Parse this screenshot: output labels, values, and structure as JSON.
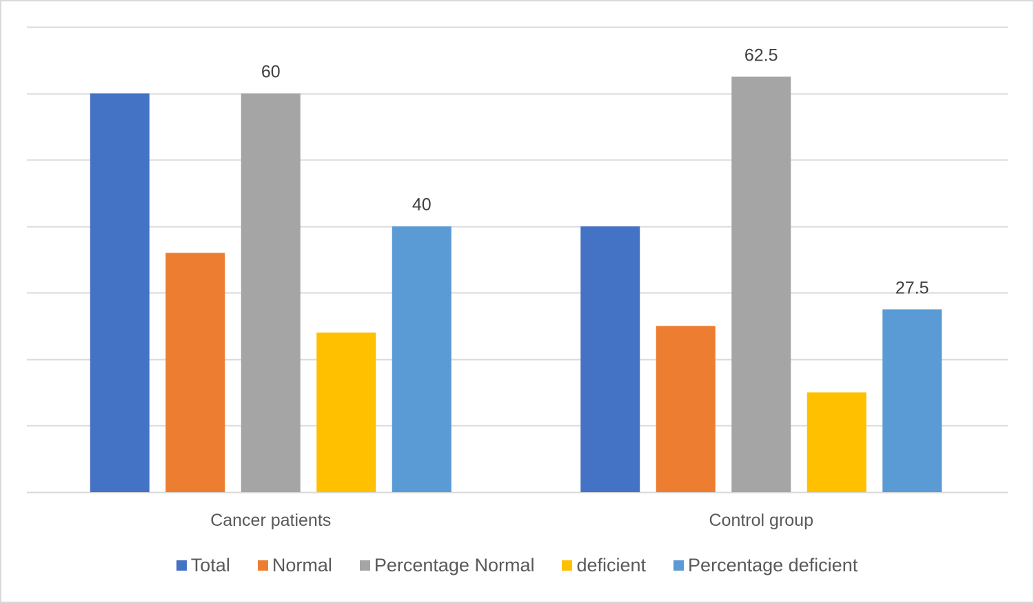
{
  "chart_data": {
    "type": "bar",
    "title": "",
    "xlabel": "",
    "ylabel": "",
    "categories": [
      "Cancer patients",
      "Control group"
    ],
    "ylim": [
      0,
      70
    ],
    "y_tick_step": 10,
    "y_tick_labels_shown": false,
    "grid": true,
    "legend_position": "bottom",
    "series": [
      {
        "name": "Total",
        "color": "#4472C4",
        "values": [
          60,
          40
        ],
        "data_labels": [
          null,
          null
        ]
      },
      {
        "name": "Normal",
        "color": "#ED7D31",
        "values": [
          36,
          25
        ],
        "data_labels": [
          null,
          null
        ]
      },
      {
        "name": "Percentage Normal",
        "color": "#A5A5A5",
        "values": [
          60,
          62.5
        ],
        "data_labels": [
          "60",
          "62.5"
        ]
      },
      {
        "name": "deficient",
        "color": "#FFC000",
        "values": [
          24,
          15
        ],
        "data_labels": [
          null,
          null
        ]
      },
      {
        "name": "Percentage deficient",
        "color": "#5B9BD5",
        "values": [
          40,
          27.5
        ],
        "data_labels": [
          "40",
          "27.5"
        ]
      }
    ]
  }
}
